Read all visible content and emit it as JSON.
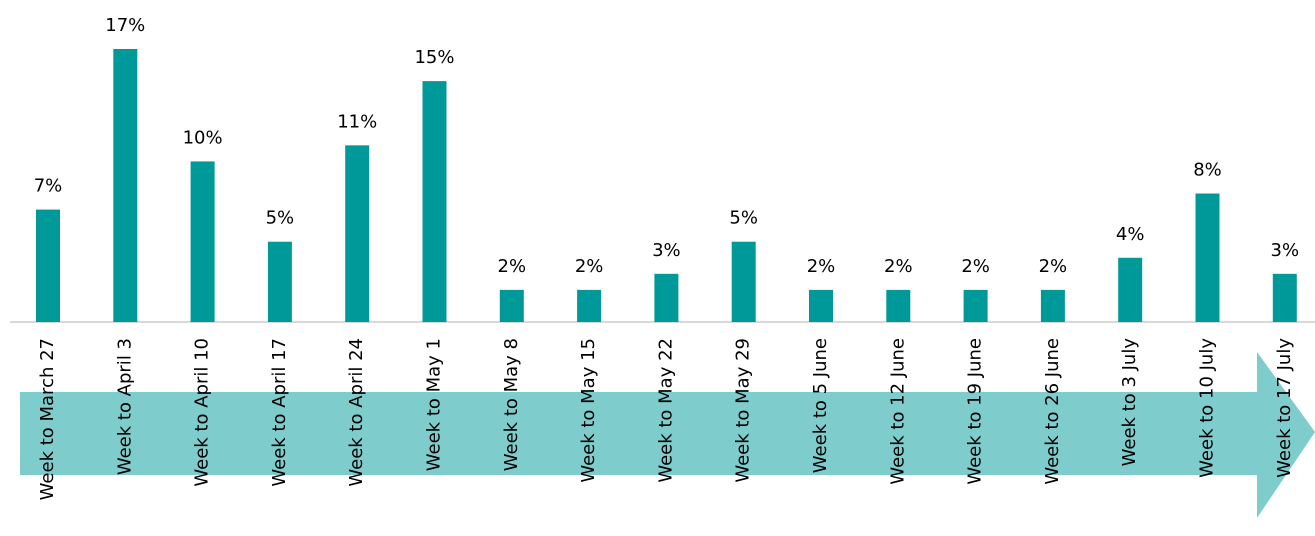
{
  "chart_data": {
    "type": "bar",
    "categories": [
      "Week to March 27",
      "Week to April 3",
      "Week to April 10",
      "Week to April 17",
      "Week to April 24",
      "Week to May 1",
      "Week to May 8",
      "Week to May 15",
      "Week to May 22",
      "Week to May 29",
      "Week to 5 June",
      "Week to 12 June",
      "Week to 19 June",
      "Week to 26 June",
      "Week to 3 July",
      "Week to 10 July",
      "Week to 17 July"
    ],
    "values": [
      7,
      17,
      10,
      5,
      11,
      15,
      2,
      2,
      3,
      5,
      2,
      2,
      2,
      2,
      4,
      8,
      3
    ],
    "value_labels": [
      "7%",
      "17%",
      "10%",
      "5%",
      "11%",
      "15%",
      "2%",
      "2%",
      "3%",
      "5%",
      "2%",
      "2%",
      "2%",
      "2%",
      "4%",
      "8%",
      "3%"
    ],
    "color": "#009999",
    "ylim": [
      0,
      17
    ]
  }
}
